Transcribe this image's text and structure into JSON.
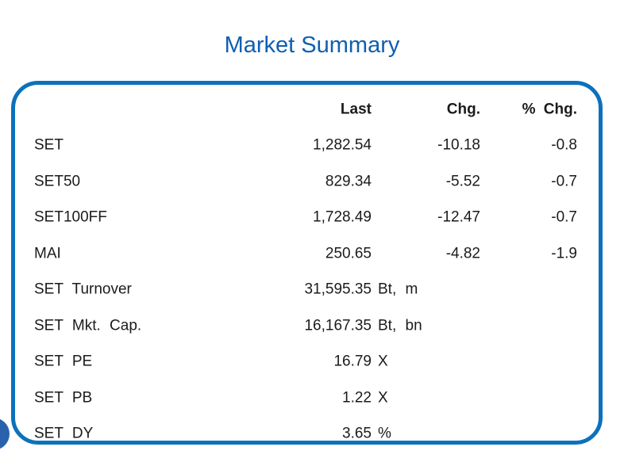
{
  "title": "Market Summary",
  "colors": {
    "title_blue": "#0f5fb0",
    "box_border_blue": "#0c71bc",
    "decoration_blue": "#2a61ac",
    "text": "#1b1b1b"
  },
  "table": {
    "headers": {
      "last": "Last",
      "chg": "Chg.",
      "pct": "% Chg."
    },
    "rows": [
      {
        "label": "SET",
        "last": "1,282.54",
        "unit": "",
        "chg": "-10.18",
        "pct": "-0.8"
      },
      {
        "label": "SET50",
        "last": "829.34",
        "unit": "",
        "chg": "-5.52",
        "pct": "-0.7"
      },
      {
        "label": "SET100FF",
        "last": "1,728.49",
        "unit": "",
        "chg": "-12.47",
        "pct": "-0.7"
      },
      {
        "label": "MAI",
        "last": "250.65",
        "unit": "",
        "chg": "-4.82",
        "pct": "-1.9"
      },
      {
        "label": "SET Turnover",
        "last": "31,595.35",
        "unit": "Bt, m",
        "chg": "",
        "pct": ""
      },
      {
        "label": "SET Mkt. Cap.",
        "last": "16,167.35",
        "unit": "Bt, bn",
        "chg": "",
        "pct": ""
      },
      {
        "label": "SET PE",
        "last": "16.79",
        "unit": "X",
        "chg": "",
        "pct": ""
      },
      {
        "label": "SET PB",
        "last": "1.22",
        "unit": "X",
        "chg": "",
        "pct": ""
      },
      {
        "label": "SET DY",
        "last": "3.65",
        "unit": "%",
        "chg": "",
        "pct": ""
      }
    ]
  }
}
